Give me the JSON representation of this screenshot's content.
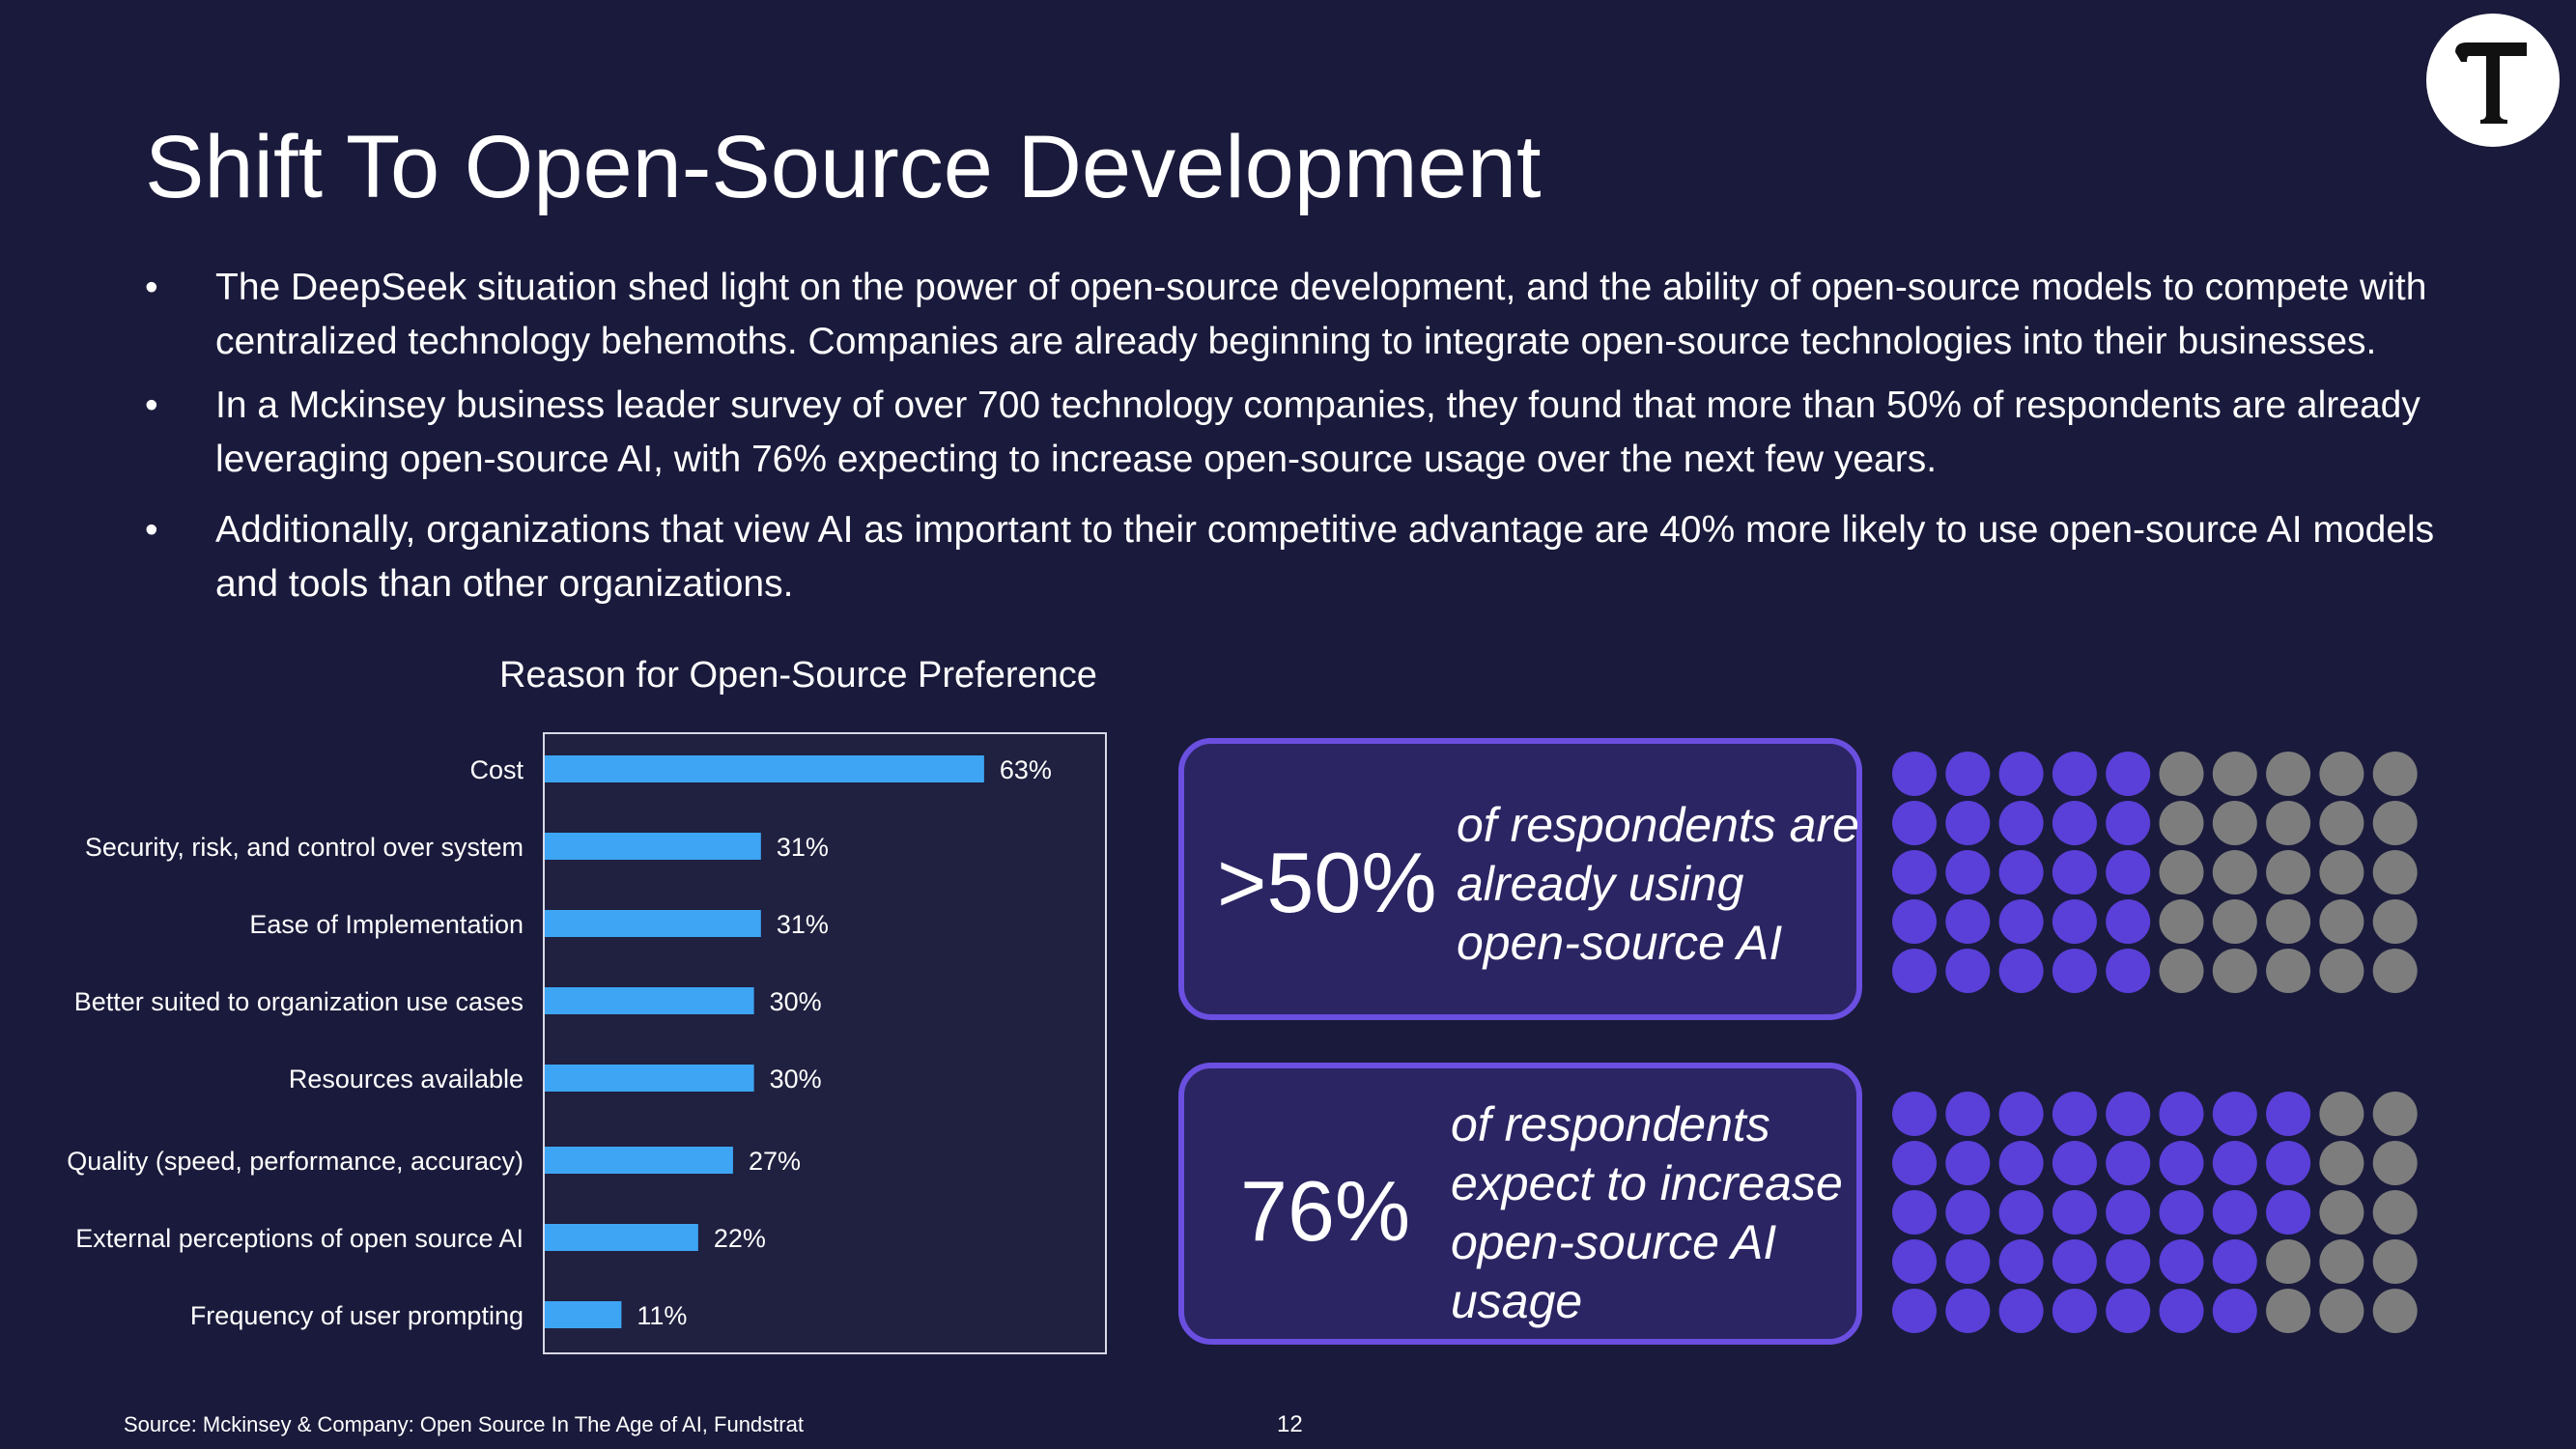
{
  "title": "Shift To Open-Source Development",
  "bullets": [
    {
      "marker": "•",
      "text": "The DeepSeek situation shed light on the power of open-source development, and the ability of open-source models to compete with centralized technology behemoths. Companies are already beginning to integrate open-source technologies into their businesses."
    },
    {
      "marker": "•",
      "text": "In a Mckinsey business leader survey of over 700 technology companies, they found that more than 50% of respondents are already leveraging open-source AI, with 76% expecting to increase open-source usage over the next few years."
    },
    {
      "marker": "•",
      "text": "Additionally, organizations that view AI as important to their competitive advantage are 40% more likely to use open-source AI models and tools than other organizations."
    }
  ],
  "chart_data": {
    "type": "bar",
    "orientation": "horizontal",
    "title": "Reason for Open-Source Preference",
    "categories": [
      "Cost",
      "Security, risk, and control over system",
      "Ease of Implementation",
      "Better suited to organization use cases",
      "Resources available",
      "Quality (speed, performance, accuracy)",
      "External perceptions of open source AI",
      "Frequency of user prompting"
    ],
    "values": [
      63,
      31,
      31,
      30,
      30,
      27,
      22,
      11
    ],
    "value_labels": [
      "63%",
      "31%",
      "31%",
      "30%",
      "30%",
      "27%",
      "22%",
      "11%"
    ],
    "xlim": [
      0,
      80
    ],
    "grid": false,
    "bar_color": "#3da5f4"
  },
  "stats": [
    {
      "value": ">50%",
      "description": "of respondents are already using open-source AI",
      "filled_fraction": 0.5
    },
    {
      "value": "76%",
      "description": "of respondents expect to increase open-source AI usage",
      "filled_fraction": 0.76
    }
  ],
  "colors": {
    "background": "#1a1a3c",
    "accent_purple": "#5a3fd8",
    "dot_gray": "#7d7d7d",
    "bar_blue": "#3da5f4",
    "stat_border": "#6a4fe0"
  },
  "logo": {
    "letter": "T"
  },
  "footer": {
    "source": "Source: Mckinsey & Company: Open Source In The Age of AI, Fundstrat",
    "page_number": "12"
  }
}
